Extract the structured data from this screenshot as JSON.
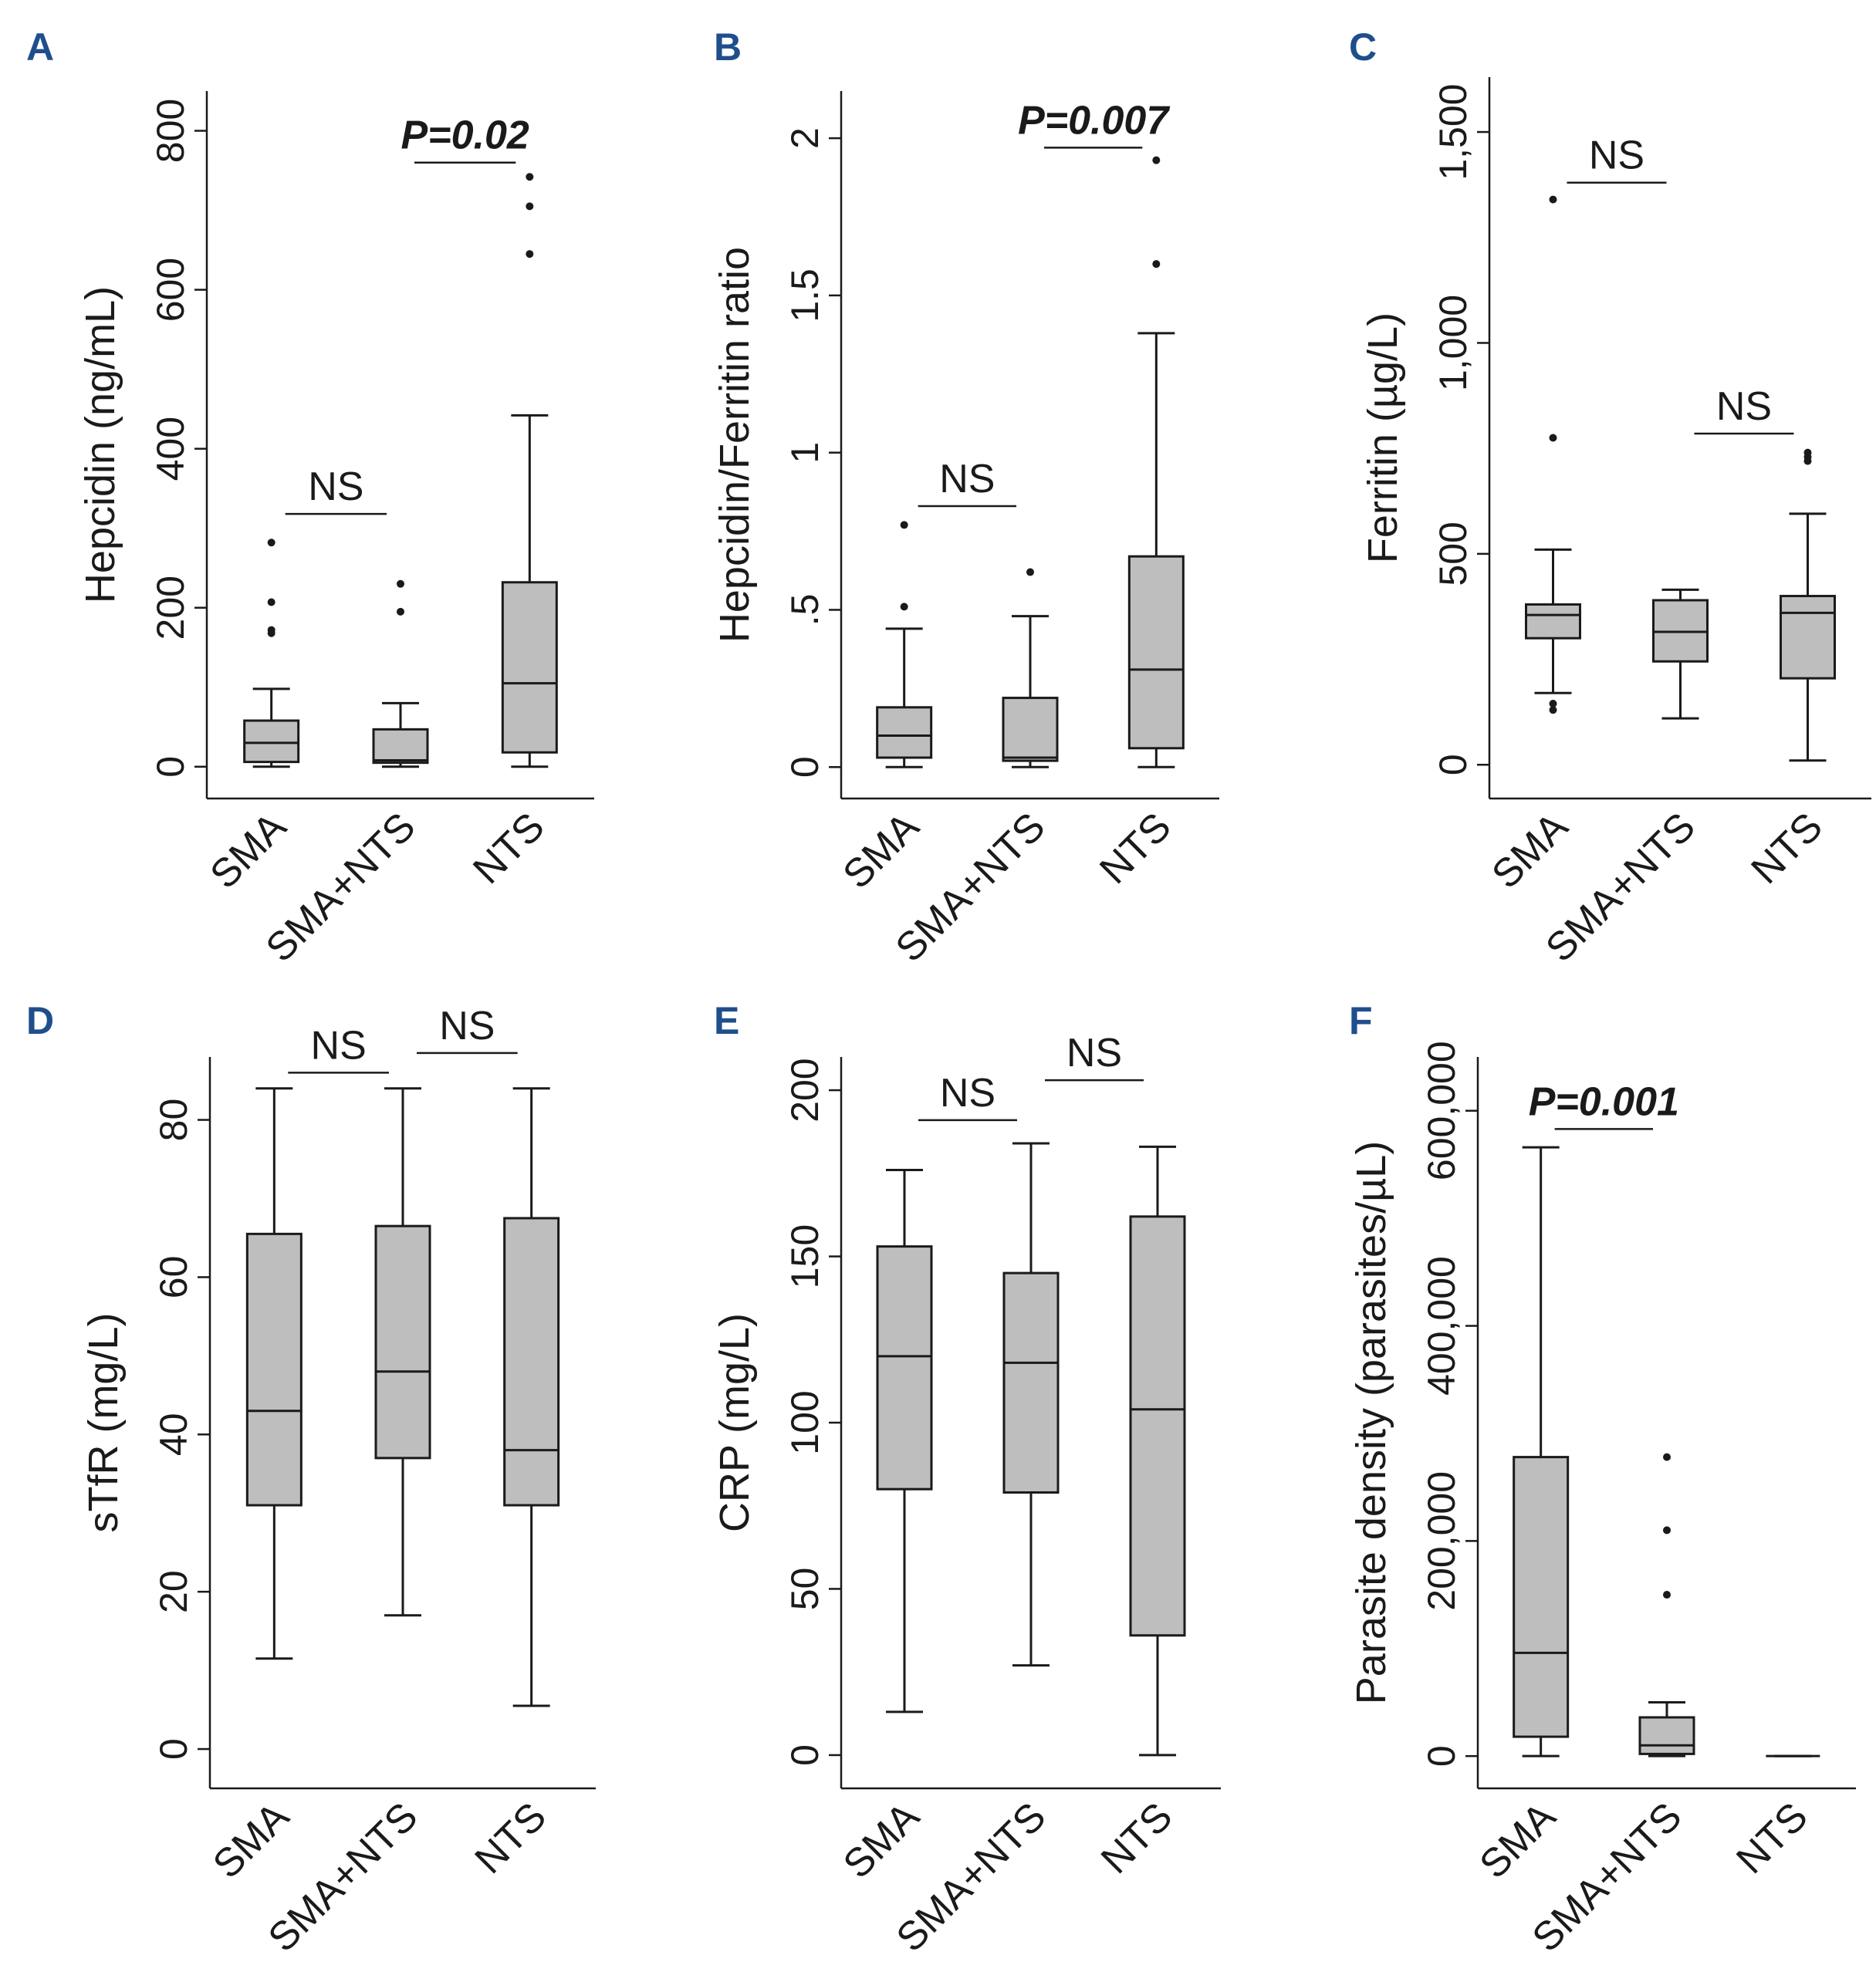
{
  "chart_data": [
    {
      "type": "box",
      "panel": "A",
      "ylabel": "Hepcidin (ng/mL)",
      "ylim": [
        -40,
        850
      ],
      "yticks": [
        0,
        200,
        400,
        600,
        800
      ],
      "ytick_labels": [
        "0",
        "200",
        "400",
        "600",
        "800"
      ],
      "categories": [
        "SMA",
        "SMA+NTS",
        "NTS"
      ],
      "boxes": [
        {
          "min": 0,
          "q1": 6,
          "median": 30,
          "q3": 58,
          "max": 98,
          "outliers": [
            168,
            172,
            207,
            282
          ]
        },
        {
          "min": 0,
          "q1": 5,
          "median": 8,
          "q3": 47,
          "max": 80,
          "outliers": [
            195,
            230
          ]
        },
        {
          "min": 0,
          "q1": 18,
          "median": 105,
          "q3": 232,
          "max": 442,
          "outliers": [
            645,
            705,
            742
          ]
        }
      ],
      "comparisons": [
        {
          "from": 0,
          "to": 1,
          "y": 318,
          "label": "NS",
          "bold": false
        },
        {
          "from": 1,
          "to": 2,
          "y": 760,
          "label": "P=0.02",
          "bold": true
        }
      ]
    },
    {
      "type": "box",
      "panel": "B",
      "ylabel": "Hepcidin/Ferritin ratio",
      "ylim": [
        -0.1,
        2.15
      ],
      "yticks": [
        0,
        0.5,
        1,
        1.5,
        2
      ],
      "ytick_labels": [
        "0",
        ".5",
        "1",
        "1.5",
        "2"
      ],
      "categories": [
        "SMA",
        "SMA+NTS",
        "NTS"
      ],
      "boxes": [
        {
          "min": 0,
          "q1": 0.03,
          "median": 0.1,
          "q3": 0.19,
          "max": 0.44,
          "outliers": [
            0.51,
            0.77
          ]
        },
        {
          "min": 0,
          "q1": 0.02,
          "median": 0.03,
          "q3": 0.22,
          "max": 0.48,
          "outliers": [
            0.62
          ]
        },
        {
          "min": 0,
          "q1": 0.06,
          "median": 0.31,
          "q3": 0.67,
          "max": 1.38,
          "outliers": [
            1.6,
            1.93
          ]
        }
      ],
      "comparisons": [
        {
          "from": 0,
          "to": 1,
          "y": 0.83,
          "label": "NS",
          "bold": false
        },
        {
          "from": 1,
          "to": 2,
          "y": 1.97,
          "label": "P=0.007",
          "bold": true
        }
      ]
    },
    {
      "type": "box",
      "panel": "C",
      "ylabel": "Ferritin (µg/L)",
      "ylim": [
        -80,
        1630
      ],
      "yticks": [
        0,
        500,
        1000,
        1500
      ],
      "ytick_labels": [
        "0",
        "500",
        "1,000",
        "1,500"
      ],
      "categories": [
        "SMA",
        "SMA+NTS",
        "NTS"
      ],
      "boxes": [
        {
          "min": 170,
          "q1": 300,
          "median": 355,
          "q3": 380,
          "max": 510,
          "outliers": [
            130,
            145,
            775,
            1340
          ]
        },
        {
          "min": 110,
          "q1": 245,
          "median": 315,
          "q3": 390,
          "max": 415,
          "outliers": []
        },
        {
          "min": 10,
          "q1": 205,
          "median": 360,
          "q3": 400,
          "max": 595,
          "outliers": [
            720,
            730,
            740
          ]
        }
      ],
      "comparisons": [
        {
          "from": 0,
          "to": 1,
          "y": 1380,
          "label": "NS",
          "bold": false
        },
        {
          "from": 1,
          "to": 2,
          "y": 785,
          "label": "NS",
          "bold": false
        }
      ]
    },
    {
      "type": "box",
      "panel": "D",
      "ylabel": "sTfR (mg/L)",
      "ylim": [
        -5,
        88
      ],
      "yticks": [
        0,
        20,
        40,
        60,
        80
      ],
      "ytick_labels": [
        "0",
        "20",
        "40",
        "60",
        "80"
      ],
      "categories": [
        "SMA",
        "SMA+NTS",
        "NTS"
      ],
      "boxes": [
        {
          "min": 11.5,
          "q1": 31,
          "median": 43,
          "q3": 65.5,
          "max": 84,
          "outliers": []
        },
        {
          "min": 17,
          "q1": 37,
          "median": 48,
          "q3": 66.5,
          "max": 84,
          "outliers": []
        },
        {
          "min": 5.5,
          "q1": 31,
          "median": 38,
          "q3": 67.5,
          "max": 84,
          "outliers": []
        }
      ],
      "comparisons": [
        {
          "from": 0,
          "to": 1,
          "y": 86,
          "label": "NS",
          "bold": false
        },
        {
          "from": 1,
          "to": 2,
          "y": 88.5,
          "label": "NS",
          "bold": false
        }
      ]
    },
    {
      "type": "box",
      "panel": "E",
      "ylabel": "CRP (mg/L)",
      "ylim": [
        -10,
        210
      ],
      "yticks": [
        0,
        50,
        100,
        150,
        200
      ],
      "ytick_labels": [
        "0",
        "50",
        "100",
        "150",
        "200"
      ],
      "categories": [
        "SMA",
        "SMA+NTS",
        "NTS"
      ],
      "boxes": [
        {
          "min": 13,
          "q1": 80,
          "median": 120,
          "q3": 153,
          "max": 176,
          "outliers": []
        },
        {
          "min": 27,
          "q1": 79,
          "median": 118,
          "q3": 145,
          "max": 184,
          "outliers": []
        },
        {
          "min": 0,
          "q1": 36,
          "median": 104,
          "q3": 162,
          "max": 183,
          "outliers": []
        }
      ],
      "comparisons": [
        {
          "from": 0,
          "to": 1,
          "y": 191,
          "label": "NS",
          "bold": false
        },
        {
          "from": 1,
          "to": 2,
          "y": 203,
          "label": "NS",
          "bold": false
        }
      ]
    },
    {
      "type": "box",
      "panel": "F",
      "ylabel": "Parasite density (parasites/µL)",
      "ylim": [
        -30000,
        650000
      ],
      "yticks": [
        0,
        200000,
        400000,
        600000
      ],
      "ytick_labels": [
        "0",
        "200,000",
        "400,000",
        "600,000"
      ],
      "categories": [
        "SMA",
        "SMA+NTS",
        "NTS"
      ],
      "boxes": [
        {
          "min": 0,
          "q1": 18000,
          "median": 96000,
          "q3": 278000,
          "max": 566000,
          "outliers": []
        },
        {
          "min": 0,
          "q1": 2000,
          "median": 10000,
          "q3": 36000,
          "max": 50000,
          "outliers": [
            150000,
            210000,
            278000
          ]
        },
        {
          "min": 0,
          "q1": 0,
          "median": 0,
          "q3": 0,
          "max": 0,
          "outliers": []
        }
      ],
      "comparisons": [
        {
          "from": 0,
          "to": 1,
          "y": 583000,
          "label": "P=0.001",
          "bold": true
        }
      ]
    }
  ],
  "colors": {
    "panel_letter": "#1f4e8c",
    "box_fill": "#bebebe",
    "line": "#1a1a1a"
  }
}
